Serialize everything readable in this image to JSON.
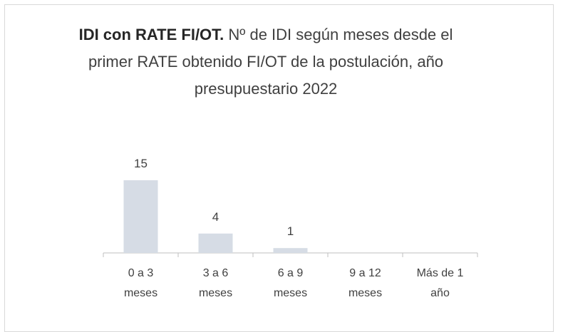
{
  "chart_data": {
    "type": "bar",
    "title_bold": "IDI con RATE FI/OT.",
    "title": "Nº de IDI según meses desde el primer RATE obtenido FI/OT de la postulación, año presupuestario 2022",
    "categories": [
      "0 a 3 meses",
      "3 a 6 meses",
      "6 a 9 meses",
      "9 a 12 meses",
      "Más de 1 año"
    ],
    "values": [
      15,
      4,
      1,
      null,
      null
    ],
    "color": "#d6dce5"
  }
}
